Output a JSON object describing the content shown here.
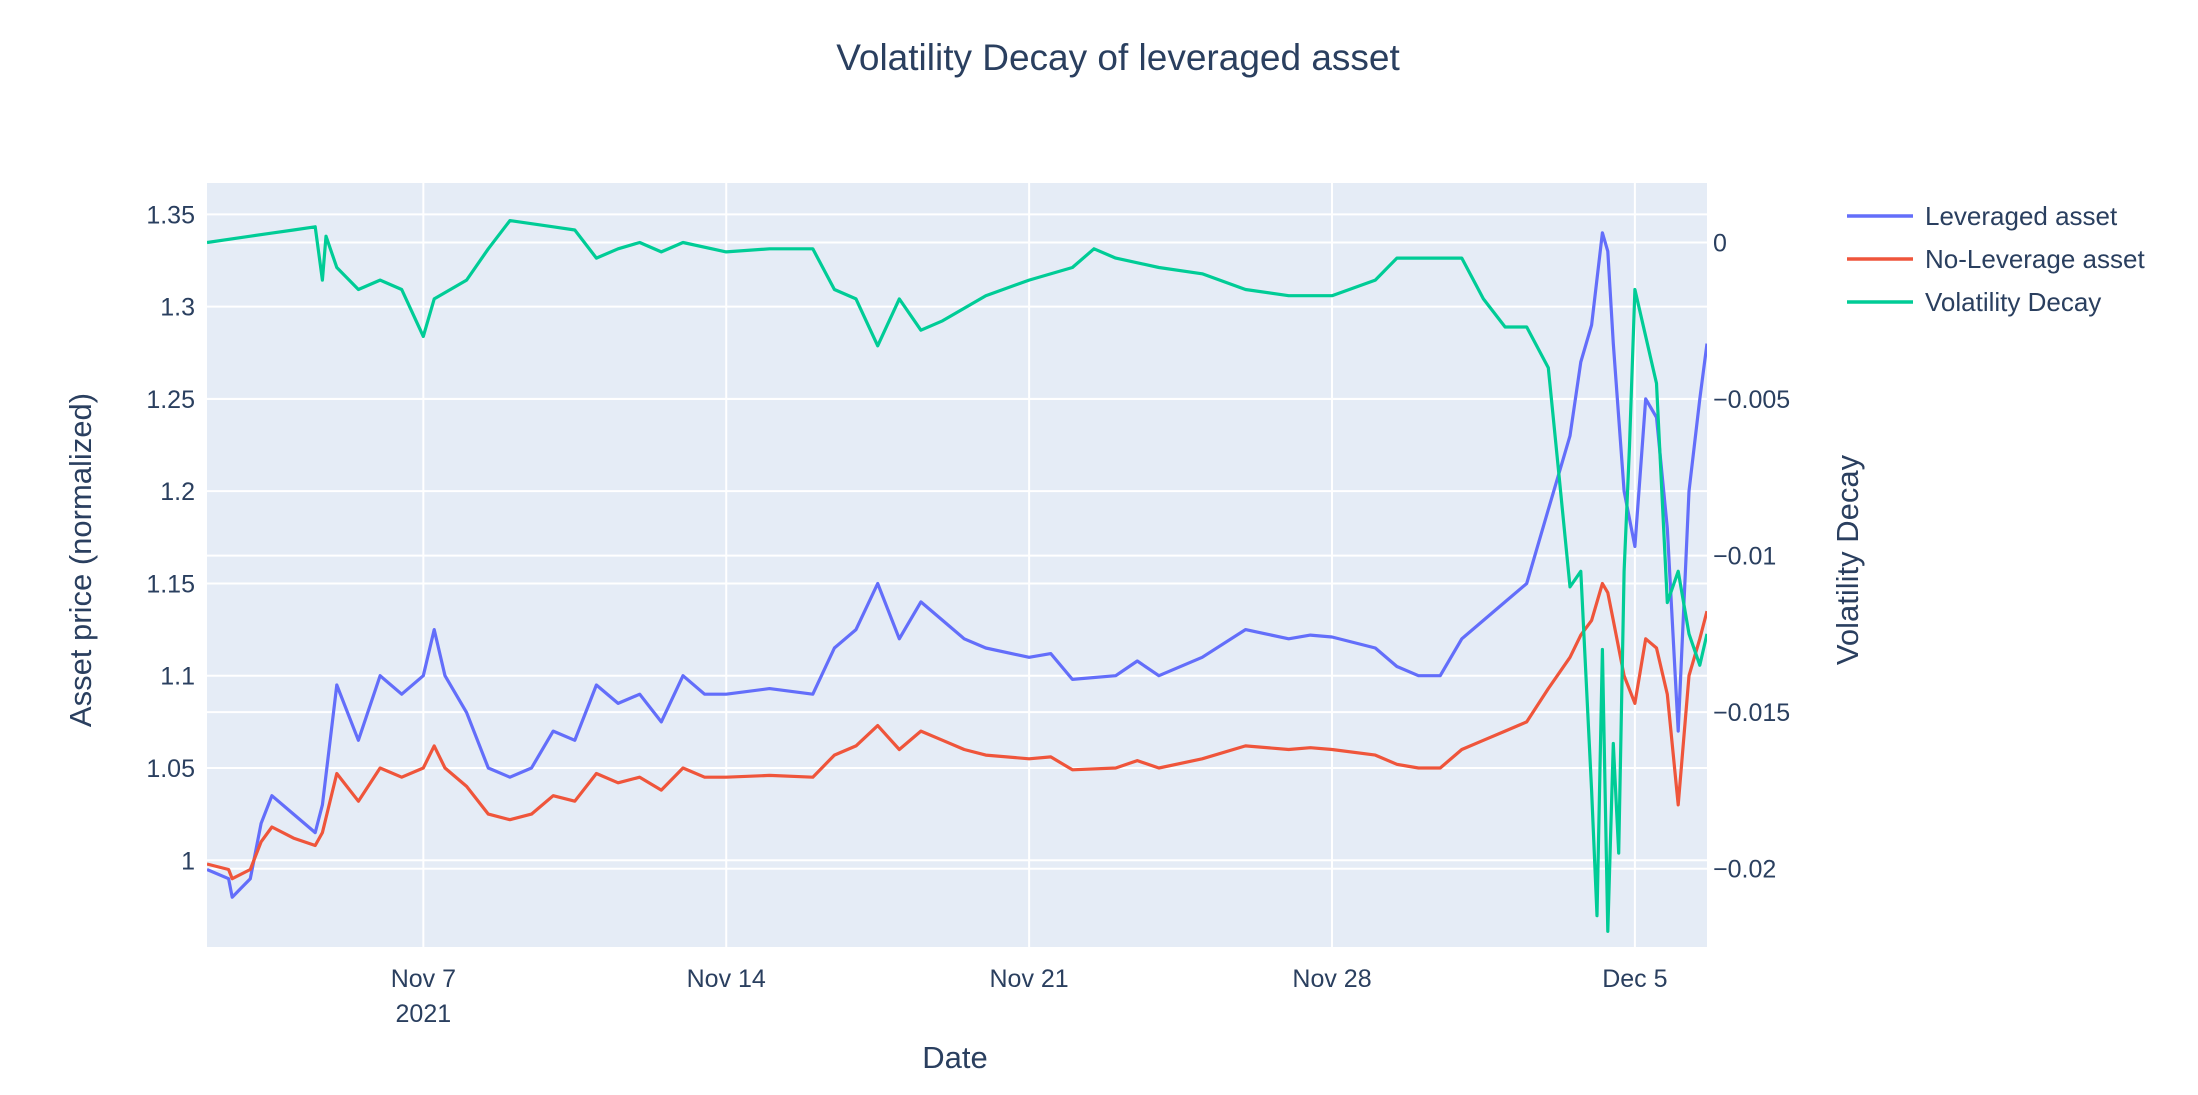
{
  "chart_data": {
    "type": "line",
    "title": "Volatility Decay of leveraged asset",
    "xlabel": "Date",
    "ylabel": "Asset price (normalized)",
    "y2label": "Volatility Decay",
    "x_range": [
      "2021-11-02T00:00",
      "2021-12-06T16:00"
    ],
    "xticks": [
      {
        "date": "2021-11-07",
        "label": "Nov 7",
        "sublabel": "2021"
      },
      {
        "date": "2021-11-14",
        "label": "Nov 14",
        "sublabel": ""
      },
      {
        "date": "2021-11-21",
        "label": "Nov 21",
        "sublabel": ""
      },
      {
        "date": "2021-11-28",
        "label": "Nov 28",
        "sublabel": ""
      },
      {
        "date": "2021-12-05",
        "label": "Dec 5",
        "sublabel": ""
      }
    ],
    "ylim": [
      0.953,
      1.367
    ],
    "y2lim": [
      -0.0225,
      0.0019
    ],
    "yticks": [
      {
        "value": 1.0,
        "label": "1"
      },
      {
        "value": 1.05,
        "label": "1.05"
      },
      {
        "value": 1.1,
        "label": "1.1"
      },
      {
        "value": 1.15,
        "label": "1.15"
      },
      {
        "value": 1.2,
        "label": "1.2"
      },
      {
        "value": 1.25,
        "label": "1.25"
      },
      {
        "value": 1.3,
        "label": "1.3"
      },
      {
        "value": 1.35,
        "label": "1.35"
      }
    ],
    "y2ticks": [
      {
        "value": 0,
        "label": "0"
      },
      {
        "value": -0.005,
        "label": "−0.005"
      },
      {
        "value": -0.01,
        "label": "−0.01"
      },
      {
        "value": -0.015,
        "label": "−0.015"
      },
      {
        "value": -0.02,
        "label": "−0.02"
      }
    ],
    "grid": true,
    "legend_position": "top-right",
    "series": [
      {
        "name": "Leveraged asset",
        "axis": "y",
        "color": "#636efa",
        "x": [
          "2021-11-02T00:00",
          "2021-11-02T12:00",
          "2021-11-02T14:00",
          "2021-11-03T00:00",
          "2021-11-03T06:00",
          "2021-11-03T12:00",
          "2021-11-04T00:00",
          "2021-11-04T12:00",
          "2021-11-04T16:00",
          "2021-11-05T00:00",
          "2021-11-05T12:00",
          "2021-11-06T00:00",
          "2021-11-06T12:00",
          "2021-11-07T00:00",
          "2021-11-07T06:00",
          "2021-11-07T12:00",
          "2021-11-08T00:00",
          "2021-11-08T12:00",
          "2021-11-09T00:00",
          "2021-11-09T12:00",
          "2021-11-10T00:00",
          "2021-11-10T12:00",
          "2021-11-11T00:00",
          "2021-11-11T12:00",
          "2021-11-12T00:00",
          "2021-11-12T12:00",
          "2021-11-13T00:00",
          "2021-11-13T12:00",
          "2021-11-14T00:00",
          "2021-11-15T00:00",
          "2021-11-16T00:00",
          "2021-11-16T12:00",
          "2021-11-17T00:00",
          "2021-11-17T12:00",
          "2021-11-18T00:00",
          "2021-11-18T12:00",
          "2021-11-19T00:00",
          "2021-11-19T12:00",
          "2021-11-20T00:00",
          "2021-11-21T00:00",
          "2021-11-21T12:00",
          "2021-11-22T00:00",
          "2021-11-23T00:00",
          "2021-11-23T12:00",
          "2021-11-24T00:00",
          "2021-11-25T00:00",
          "2021-11-26T00:00",
          "2021-11-27T00:00",
          "2021-11-27T12:00",
          "2021-11-28T00:00",
          "2021-11-29T00:00",
          "2021-11-29T12:00",
          "2021-11-30T00:00",
          "2021-11-30T12:00",
          "2021-12-01T00:00",
          "2021-12-01T12:00",
          "2021-12-02T00:00",
          "2021-12-02T12:00",
          "2021-12-03T00:00",
          "2021-12-03T12:00",
          "2021-12-03T18:00",
          "2021-12-04T00:00",
          "2021-12-04T06:00",
          "2021-12-04T09:00",
          "2021-12-04T12:00",
          "2021-12-04T18:00",
          "2021-12-05T00:00",
          "2021-12-05T06:00",
          "2021-12-05T12:00",
          "2021-12-05T18:00",
          "2021-12-06T00:00",
          "2021-12-06T06:00",
          "2021-12-06T12:00",
          "2021-12-06T16:00"
        ],
        "y": [
          0.995,
          0.99,
          0.98,
          0.99,
          1.02,
          1.035,
          1.025,
          1.015,
          1.03,
          1.095,
          1.065,
          1.1,
          1.09,
          1.1,
          1.125,
          1.1,
          1.08,
          1.05,
          1.045,
          1.05,
          1.07,
          1.065,
          1.095,
          1.085,
          1.09,
          1.075,
          1.1,
          1.09,
          1.09,
          1.093,
          1.09,
          1.115,
          1.125,
          1.15,
          1.12,
          1.14,
          1.13,
          1.12,
          1.115,
          1.11,
          1.112,
          1.098,
          1.1,
          1.108,
          1.1,
          1.11,
          1.125,
          1.12,
          1.122,
          1.121,
          1.115,
          1.105,
          1.1,
          1.1,
          1.12,
          1.13,
          1.14,
          1.15,
          1.19,
          1.23,
          1.27,
          1.29,
          1.34,
          1.33,
          1.28,
          1.2,
          1.17,
          1.25,
          1.24,
          1.18,
          1.07,
          1.2,
          1.25,
          1.28
        ]
      },
      {
        "name": "No-Leverage asset",
        "axis": "y",
        "color": "#ef553b",
        "x": [
          "2021-11-02T00:00",
          "2021-11-02T12:00",
          "2021-11-02T14:00",
          "2021-11-03T00:00",
          "2021-11-03T06:00",
          "2021-11-03T12:00",
          "2021-11-04T00:00",
          "2021-11-04T12:00",
          "2021-11-04T16:00",
          "2021-11-05T00:00",
          "2021-11-05T12:00",
          "2021-11-06T00:00",
          "2021-11-06T12:00",
          "2021-11-07T00:00",
          "2021-11-07T06:00",
          "2021-11-07T12:00",
          "2021-11-08T00:00",
          "2021-11-08T12:00",
          "2021-11-09T00:00",
          "2021-11-09T12:00",
          "2021-11-10T00:00",
          "2021-11-10T12:00",
          "2021-11-11T00:00",
          "2021-11-11T12:00",
          "2021-11-12T00:00",
          "2021-11-12T12:00",
          "2021-11-13T00:00",
          "2021-11-13T12:00",
          "2021-11-14T00:00",
          "2021-11-15T00:00",
          "2021-11-16T00:00",
          "2021-11-16T12:00",
          "2021-11-17T00:00",
          "2021-11-17T12:00",
          "2021-11-18T00:00",
          "2021-11-18T12:00",
          "2021-11-19T00:00",
          "2021-11-19T12:00",
          "2021-11-20T00:00",
          "2021-11-21T00:00",
          "2021-11-21T12:00",
          "2021-11-22T00:00",
          "2021-11-23T00:00",
          "2021-11-23T12:00",
          "2021-11-24T00:00",
          "2021-11-25T00:00",
          "2021-11-26T00:00",
          "2021-11-27T00:00",
          "2021-11-27T12:00",
          "2021-11-28T00:00",
          "2021-11-29T00:00",
          "2021-11-29T12:00",
          "2021-11-30T00:00",
          "2021-11-30T12:00",
          "2021-12-01T00:00",
          "2021-12-01T12:00",
          "2021-12-02T00:00",
          "2021-12-02T12:00",
          "2021-12-03T00:00",
          "2021-12-03T12:00",
          "2021-12-03T18:00",
          "2021-12-04T00:00",
          "2021-12-04T06:00",
          "2021-12-04T09:00",
          "2021-12-04T12:00",
          "2021-12-04T18:00",
          "2021-12-05T00:00",
          "2021-12-05T06:00",
          "2021-12-05T12:00",
          "2021-12-05T18:00",
          "2021-12-06T00:00",
          "2021-12-06T06:00",
          "2021-12-06T12:00",
          "2021-12-06T16:00"
        ],
        "y": [
          0.998,
          0.995,
          0.99,
          0.995,
          1.01,
          1.018,
          1.012,
          1.008,
          1.015,
          1.047,
          1.032,
          1.05,
          1.045,
          1.05,
          1.062,
          1.05,
          1.04,
          1.025,
          1.022,
          1.025,
          1.035,
          1.032,
          1.047,
          1.042,
          1.045,
          1.038,
          1.05,
          1.045,
          1.045,
          1.046,
          1.045,
          1.057,
          1.062,
          1.073,
          1.06,
          1.07,
          1.065,
          1.06,
          1.057,
          1.055,
          1.056,
          1.049,
          1.05,
          1.054,
          1.05,
          1.055,
          1.062,
          1.06,
          1.061,
          1.06,
          1.057,
          1.052,
          1.05,
          1.05,
          1.06,
          1.065,
          1.07,
          1.075,
          1.093,
          1.11,
          1.122,
          1.13,
          1.15,
          1.145,
          1.13,
          1.1,
          1.085,
          1.12,
          1.115,
          1.09,
          1.03,
          1.1,
          1.12,
          1.135
        ]
      },
      {
        "name": "Volatility Decay",
        "axis": "y2",
        "color": "#00cc96",
        "x": [
          "2021-11-02T00:00",
          "2021-11-03T00:00",
          "2021-11-03T12:00",
          "2021-11-04T00:00",
          "2021-11-04T12:00",
          "2021-11-04T16:00",
          "2021-11-04T18:00",
          "2021-11-05T00:00",
          "2021-11-05T12:00",
          "2021-11-06T00:00",
          "2021-11-06T12:00",
          "2021-11-06T20:00",
          "2021-11-07T00:00",
          "2021-11-07T06:00",
          "2021-11-08T00:00",
          "2021-11-08T12:00",
          "2021-11-09T00:00",
          "2021-11-09T12:00",
          "2021-11-10T00:00",
          "2021-11-10T12:00",
          "2021-11-11T00:00",
          "2021-11-11T12:00",
          "2021-11-12T00:00",
          "2021-11-12T12:00",
          "2021-11-13T00:00",
          "2021-11-14T00:00",
          "2021-11-15T00:00",
          "2021-11-16T00:00",
          "2021-11-16T12:00",
          "2021-11-17T00:00",
          "2021-11-17T12:00",
          "2021-11-18T00:00",
          "2021-11-18T12:00",
          "2021-11-19T00:00",
          "2021-11-20T00:00",
          "2021-11-21T00:00",
          "2021-11-22T00:00",
          "2021-11-22T12:00",
          "2021-11-23T00:00",
          "2021-11-24T00:00",
          "2021-11-25T00:00",
          "2021-11-26T00:00",
          "2021-11-27T00:00",
          "2021-11-28T00:00",
          "2021-11-29T00:00",
          "2021-11-29T12:00",
          "2021-11-30T00:00",
          "2021-12-01T00:00",
          "2021-12-01T12:00",
          "2021-12-02T00:00",
          "2021-12-02T12:00",
          "2021-12-03T00:00",
          "2021-12-03T06:00",
          "2021-12-03T12:00",
          "2021-12-03T18:00",
          "2021-12-04T00:00",
          "2021-12-04T03:00",
          "2021-12-04T06:00",
          "2021-12-04T09:00",
          "2021-12-04T12:00",
          "2021-12-04T15:00",
          "2021-12-04T18:00",
          "2021-12-04T21:00",
          "2021-12-05T00:00",
          "2021-12-05T06:00",
          "2021-12-05T12:00",
          "2021-12-05T18:00",
          "2021-12-06T00:00",
          "2021-12-06T06:00",
          "2021-12-06T12:00",
          "2021-12-06T16:00"
        ],
        "y": [
          0,
          0.0002,
          0.0003,
          0.0004,
          0.0005,
          -0.0012,
          0.0002,
          -0.0008,
          -0.0015,
          -0.0012,
          -0.0015,
          -0.0025,
          -0.003,
          -0.0018,
          -0.0012,
          -0.0002,
          0.0007,
          0.0006,
          0.0005,
          0.0004,
          -0.0005,
          -0.0002,
          0,
          -0.0003,
          0,
          -0.0003,
          -0.0002,
          -0.0002,
          -0.0015,
          -0.0018,
          -0.0033,
          -0.0018,
          -0.0028,
          -0.0025,
          -0.0017,
          -0.0012,
          -0.0008,
          -0.0002,
          -0.0005,
          -0.0008,
          -0.001,
          -0.0015,
          -0.0017,
          -0.0017,
          -0.0012,
          -0.0005,
          -0.0005,
          -0.0005,
          -0.0018,
          -0.0027,
          -0.0027,
          -0.004,
          -0.0075,
          -0.011,
          -0.0105,
          -0.0175,
          -0.0215,
          -0.013,
          -0.022,
          -0.016,
          -0.0195,
          -0.0105,
          -0.0065,
          -0.0015,
          -0.003,
          -0.0045,
          -0.0115,
          -0.0105,
          -0.0125,
          -0.0135,
          -0.0125
        ]
      }
    ]
  }
}
